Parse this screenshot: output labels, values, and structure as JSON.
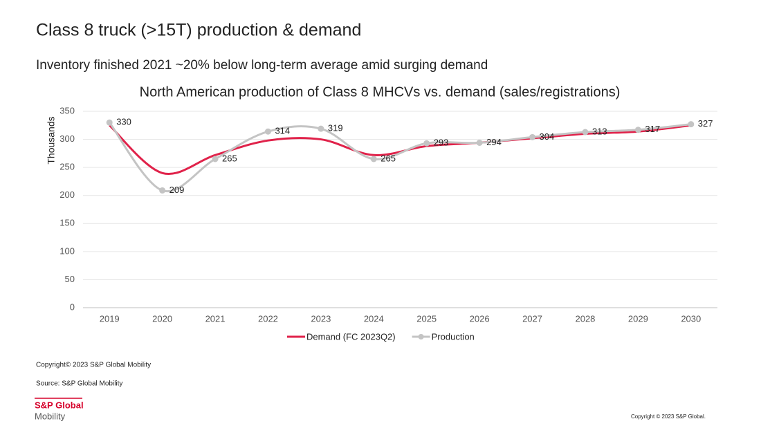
{
  "header": {
    "title": "Class 8 truck (>15T) production & demand",
    "subtitle": "Inventory finished 2021 ~20% below long-term average amid surging demand"
  },
  "chart_data": {
    "type": "line",
    "title": "North American production of Class 8 MHCVs vs. demand (sales/registrations)",
    "y_label": "Thousands",
    "categories": [
      "2019",
      "2020",
      "2021",
      "2022",
      "2023",
      "2024",
      "2025",
      "2026",
      "2027",
      "2028",
      "2029",
      "2030"
    ],
    "series": [
      {
        "name": "Demand (FC 2023Q2)",
        "color": "#e0224a",
        "values": [
          325,
          240,
          272,
          298,
          300,
          272,
          288,
          294,
          302,
          310,
          314,
          325
        ]
      },
      {
        "name": "Production",
        "color": "#c4c4c4",
        "values": [
          330,
          209,
          265,
          314,
          319,
          265,
          293,
          294,
          304,
          313,
          317,
          327
        ],
        "data_labels": true
      }
    ],
    "ylim": [
      0,
      350
    ],
    "yticks": [
      0,
      50,
      100,
      150,
      200,
      250,
      300,
      350
    ],
    "grid": true,
    "smooth": true,
    "legend": "bottom"
  },
  "footer": {
    "copyright": "Copyright© 2023 S&P Global Mobility",
    "source": "Source: S&P Global Mobility",
    "logo_top": "S&P Global",
    "logo_bottom": "Mobility",
    "corner_copyright": "Copyright © 2023 S&P Global."
  }
}
